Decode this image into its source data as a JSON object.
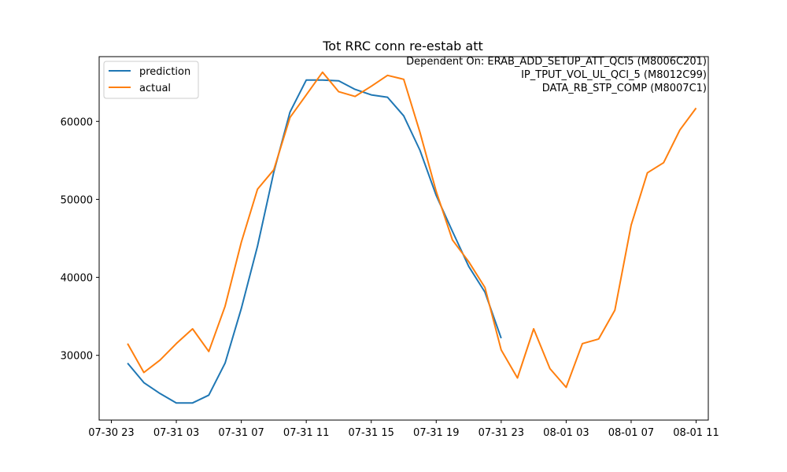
{
  "chart_data": {
    "type": "line",
    "title": "Tot RRC conn re-estab att",
    "annotations": [
      "Dependent On: ERAB_ADD_SETUP_ATT_QCI5 (M8006C201)",
      "IP_TPUT_VOL_UL_QCI_5 (M8012C99)",
      "DATA_RB_STP_COMP (M8007C1)"
    ],
    "xlabel": "",
    "ylabel": "",
    "x_range": [
      "2021-07-30 22:15",
      "2021-08-01 11:45"
    ],
    "ylim": [
      21700,
      68300
    ],
    "x_ticks": [
      {
        "t": "2021-07-30 23:00",
        "label": "07-30 23"
      },
      {
        "t": "2021-07-31 03:00",
        "label": "07-31 03"
      },
      {
        "t": "2021-07-31 07:00",
        "label": "07-31 07"
      },
      {
        "t": "2021-07-31 11:00",
        "label": "07-31 11"
      },
      {
        "t": "2021-07-31 15:00",
        "label": "07-31 15"
      },
      {
        "t": "2021-07-31 19:00",
        "label": "07-31 19"
      },
      {
        "t": "2021-07-31 23:00",
        "label": "07-31 23"
      },
      {
        "t": "2021-08-01 03:00",
        "label": "08-01 03"
      },
      {
        "t": "2021-08-01 07:00",
        "label": "08-01 07"
      },
      {
        "t": "2021-08-01 11:00",
        "label": "08-01 11"
      }
    ],
    "y_ticks": [
      30000,
      40000,
      50000,
      60000
    ],
    "legend_position": "top-left",
    "grid": false,
    "series": [
      {
        "name": "prediction",
        "color": "#1f77b4",
        "x": [
          "2021-07-31 00:00",
          "2021-07-31 01:00",
          "2021-07-31 02:00",
          "2021-07-31 03:00",
          "2021-07-31 04:00",
          "2021-07-31 05:00",
          "2021-07-31 06:00",
          "2021-07-31 07:00",
          "2021-07-31 08:00",
          "2021-07-31 09:00",
          "2021-07-31 10:00",
          "2021-07-31 11:00",
          "2021-07-31 12:00",
          "2021-07-31 13:00",
          "2021-07-31 14:00",
          "2021-07-31 15:00",
          "2021-07-31 16:00",
          "2021-07-31 17:00",
          "2021-07-31 18:00",
          "2021-07-31 19:00",
          "2021-07-31 20:00",
          "2021-07-31 21:00",
          "2021-07-31 22:00",
          "2021-07-31 23:00"
        ],
        "values": [
          29000,
          26500,
          25100,
          23900,
          23900,
          24900,
          29000,
          36000,
          44000,
          53500,
          61200,
          65300,
          65300,
          65200,
          64100,
          63400,
          63100,
          60700,
          56300,
          50500,
          45900,
          41400,
          38100,
          32200
        ]
      },
      {
        "name": "actual",
        "color": "#ff7f0e",
        "x": [
          "2021-07-31 00:00",
          "2021-07-31 01:00",
          "2021-07-31 02:00",
          "2021-07-31 03:00",
          "2021-07-31 04:00",
          "2021-07-31 05:00",
          "2021-07-31 06:00",
          "2021-07-31 07:00",
          "2021-07-31 08:00",
          "2021-07-31 09:00",
          "2021-07-31 10:00",
          "2021-07-31 11:00",
          "2021-07-31 12:00",
          "2021-07-31 13:00",
          "2021-07-31 14:00",
          "2021-07-31 15:00",
          "2021-07-31 16:00",
          "2021-07-31 17:00",
          "2021-07-31 18:00",
          "2021-07-31 19:00",
          "2021-07-31 20:00",
          "2021-07-31 21:00",
          "2021-07-31 22:00",
          "2021-07-31 23:00",
          "2021-08-01 00:00",
          "2021-08-01 01:00",
          "2021-08-01 02:00",
          "2021-08-01 03:00",
          "2021-08-01 04:00",
          "2021-08-01 05:00",
          "2021-08-01 06:00",
          "2021-08-01 07:00",
          "2021-08-01 08:00",
          "2021-08-01 09:00",
          "2021-08-01 10:00",
          "2021-08-01 11:00"
        ],
        "values": [
          31500,
          27800,
          29400,
          31500,
          33400,
          30500,
          36300,
          44500,
          51300,
          53800,
          60500,
          63400,
          66300,
          63800,
          63200,
          64500,
          65900,
          65400,
          58600,
          51000,
          44800,
          42000,
          38700,
          30700,
          27100,
          33400,
          28300,
          25900,
          31500,
          32100,
          35800,
          46700,
          53400,
          54700,
          58900,
          61700
        ]
      }
    ]
  }
}
